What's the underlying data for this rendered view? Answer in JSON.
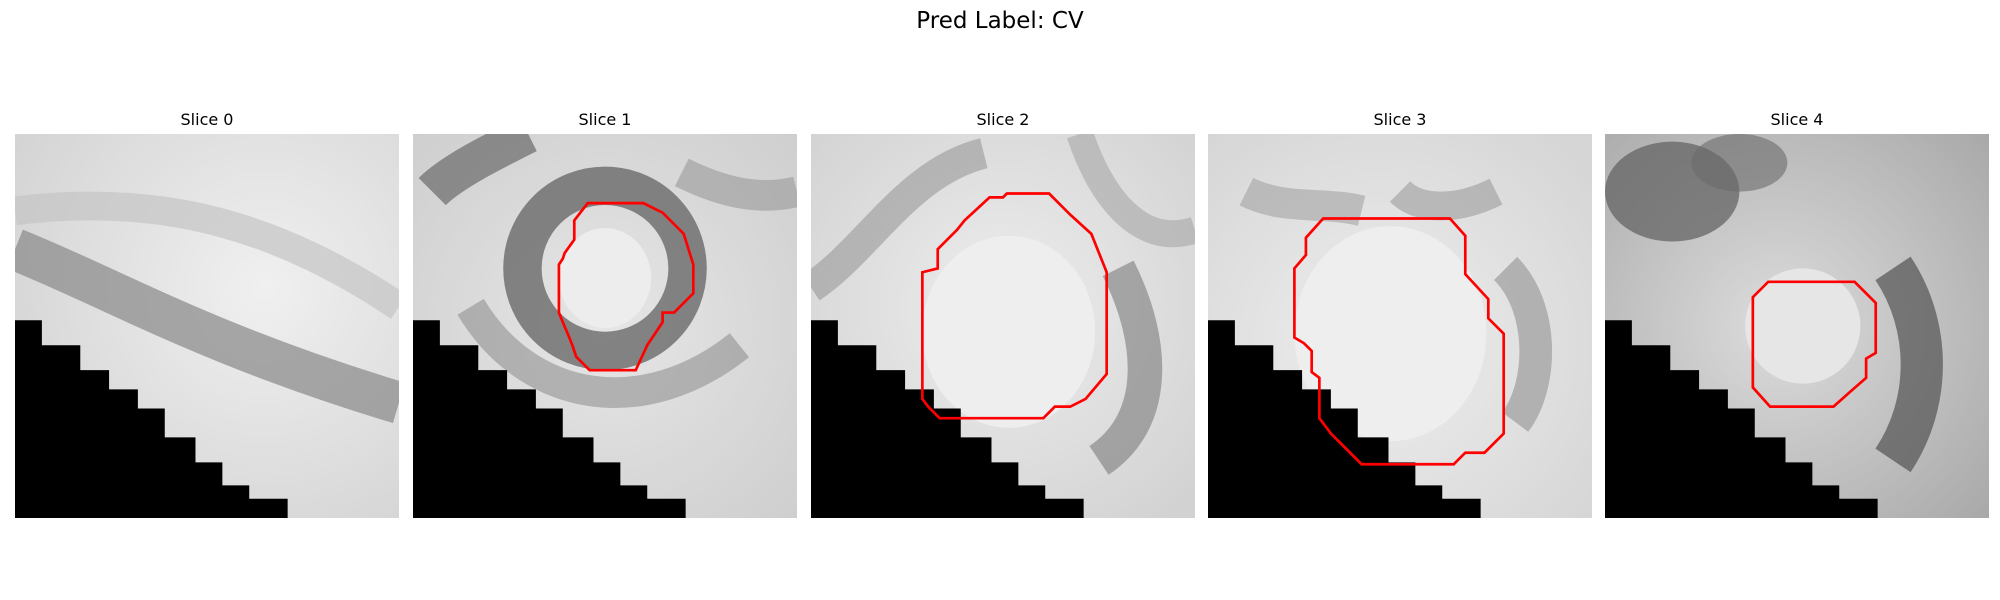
{
  "figure": {
    "title": "Pred Label: CV"
  },
  "panels": [
    {
      "title": "Slice 0",
      "has_contour": false
    },
    {
      "title": "Slice 1",
      "has_contour": true
    },
    {
      "title": "Slice 2",
      "has_contour": true
    },
    {
      "title": "Slice 3",
      "has_contour": true
    },
    {
      "title": "Slice 4",
      "has_contour": true
    }
  ],
  "colors": {
    "contour": "#ff0000",
    "mask": "#000000",
    "background": "#ffffff"
  }
}
